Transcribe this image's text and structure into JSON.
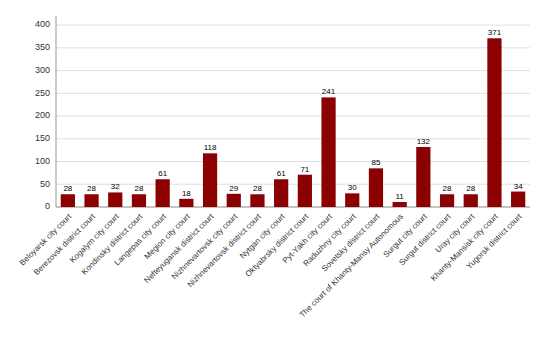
{
  "chart_data": {
    "type": "bar",
    "categories": [
      "Beloyarsk city court",
      "Berezovsk district court",
      "Kogalym city court",
      "Kondinsky district court",
      "Langepas city court",
      "Megion city court",
      "Nefteyugansk district court",
      "Nizhnevartovsk city court",
      "Nizhnevartovsk district court",
      "Nytgan city court",
      "Oktyabrsky district court",
      "Pyt-Yakh city court",
      "Raduzhny city court",
      "Sovetsky district court",
      "The court of Khanty-Mansy Autonomous",
      "Surgut city court",
      "Surgut district court",
      "Uray city court",
      "Khanty-Mansisk city court",
      "Yugorsk district court"
    ],
    "values": [
      28,
      28,
      32,
      28,
      61,
      18,
      118,
      29,
      28,
      61,
      71,
      241,
      30,
      85,
      11,
      132,
      28,
      28,
      371,
      34
    ],
    "color": "#8B0000",
    "ylim": [
      0,
      420
    ],
    "yticks": [
      0,
      50,
      100,
      150,
      200,
      250,
      300,
      350,
      400
    ],
    "grid": true,
    "data_labels": true
  }
}
